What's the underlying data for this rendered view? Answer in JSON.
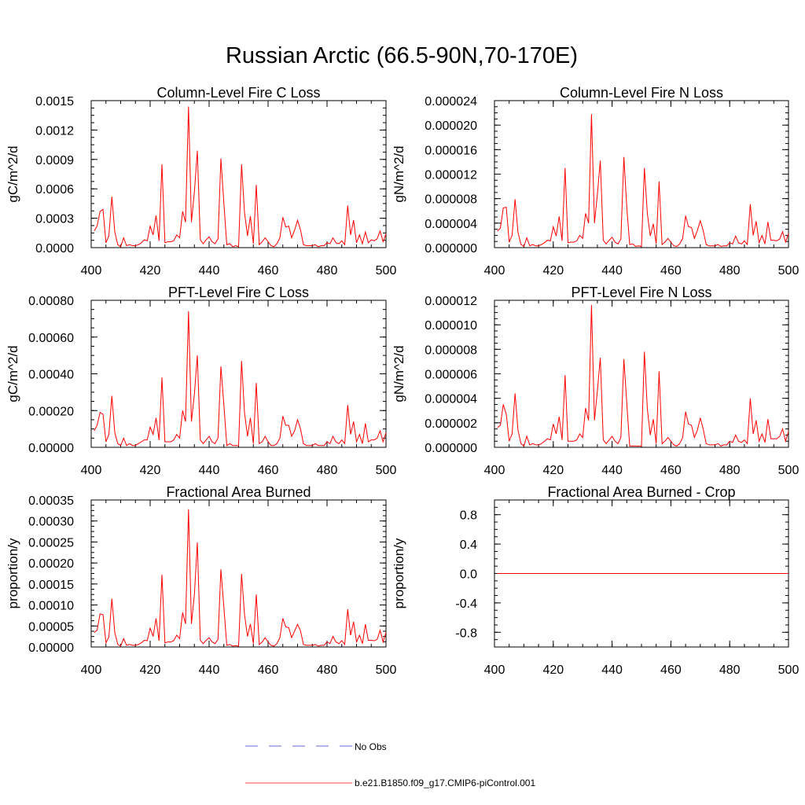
{
  "figure_title": "Russian Arctic (66.5-90N,70-170E)",
  "colors": {
    "series": "#ff0000",
    "obs": "#6a6ad8",
    "axis": "#000000"
  },
  "legend": [
    {
      "label": "No Obs",
      "style": "dashed",
      "color": "#6a6ad8"
    },
    {
      "label": "b.e21.B1850.f09_g17.CMIP6-piControl.001",
      "style": "solid",
      "color": "#ff0000"
    }
  ],
  "chart_data": [
    {
      "type": "line",
      "title": "Column-Level Fire C Loss",
      "ylabel": "gC/m^2/d",
      "xlabel": "",
      "xlim": [
        400,
        500
      ],
      "ylim": [
        0,
        0.0015
      ],
      "xticks": [
        400,
        420,
        440,
        460,
        480,
        500
      ],
      "xtick_labels": [
        "400",
        "420",
        "440",
        "460",
        "480",
        "500"
      ],
      "yticks": [
        0,
        0.0003,
        0.0006,
        0.0009,
        0.0012,
        0.0015
      ],
      "ytick_labels": [
        "0.0000",
        "0.0003",
        "0.0006",
        "0.0009",
        "0.0012",
        "0.0015"
      ],
      "series": [
        {
          "name": "b.e21.B1850.f09_g17.CMIP6-piControl.001",
          "x_start": 401,
          "values": [
            0.00017,
            0.00022,
            0.00037,
            0.00039,
            5e-05,
            0.00012,
            0.00052,
            0.00016,
            3e-05,
            1e-05,
            0.0001,
            2e-05,
            3e-05,
            2e-05,
            2e-05,
            3e-05,
            5e-05,
            8e-05,
            7e-05,
            0.00022,
            0.00013,
            0.00033,
            7e-05,
            0.00085,
            5e-05,
            6e-05,
            6e-05,
            7e-05,
            0.00013,
            0.0001,
            0.00037,
            0.00026,
            0.00144,
            0.00026,
            0.00057,
            0.00099,
            8e-05,
            4e-05,
            8e-05,
            0.00011,
            6e-05,
            4e-05,
            9e-05,
            0.00091,
            0.00045,
            3e-05,
            4e-05,
            1e-05,
            2e-05,
            1e-05,
            0.00085,
            0.00036,
            0.00012,
            0.00032,
            4e-05,
            0.00064,
            3e-05,
            6e-05,
            0.0001,
            6e-05,
            2e-05,
            1e-05,
            4e-05,
            0.0001,
            0.00031,
            0.00021,
            0.00022,
            0.0001,
            0.00018,
            0.00028,
            0.00018,
            3e-05,
            2e-05,
            2e-05,
            2e-05,
            3e-05,
            1e-05,
            2e-05,
            2e-05,
            5e-05,
            4e-05,
            0.0001,
            5e-05,
            4e-05,
            7e-05,
            3e-05,
            0.00043,
            0.00013,
            0.00028,
            5e-05,
            0.00013,
            4e-05,
            0.00016,
            5e-05,
            8e-05,
            7e-05,
            9e-05,
            0.00017,
            6e-05,
            0.00014
          ]
        }
      ]
    },
    {
      "type": "line",
      "title": "Column-Level Fire N Loss",
      "ylabel": "gN/m^2/d",
      "xlabel": "",
      "xlim": [
        400,
        500
      ],
      "ylim": [
        0,
        2.4e-05
      ],
      "xticks": [
        400,
        420,
        440,
        460,
        480,
        500
      ],
      "xtick_labels": [
        "400",
        "420",
        "440",
        "460",
        "480",
        "500"
      ],
      "yticks": [
        0,
        4e-06,
        8e-06,
        1.2e-05,
        1.6e-05,
        2e-05,
        2.4e-05
      ],
      "ytick_labels": [
        "0.000000",
        "0.000004",
        "0.000008",
        "0.000012",
        "0.000016",
        "0.000020",
        "0.000024"
      ],
      "series": [
        {
          "name": "b.e21.B1850.f09_g17.CMIP6-piControl.001",
          "x_start": 401,
          "values": [
            2.7e-06,
            3.2e-06,
            6.5e-06,
            6.6e-06,
            9e-07,
            2e-06,
            7.9e-06,
            2.5e-06,
            5e-07,
            2e-07,
            1.6e-06,
            3e-07,
            5e-07,
            3e-07,
            3e-07,
            5e-07,
            8e-07,
            1.2e-06,
            1.1e-06,
            3.4e-06,
            1.9e-06,
            5.1e-06,
            1.1e-06,
            1.3e-05,
            8e-07,
            9e-07,
            9e-07,
            1.1e-06,
            2e-06,
            1.5e-06,
            5.6e-06,
            4e-06,
            2.18e-05,
            4e-06,
            8.7e-06,
            1.42e-05,
            1.2e-06,
            6e-07,
            1.2e-06,
            1.7e-06,
            9e-07,
            6e-07,
            1.4e-06,
            1.48e-05,
            6.6e-06,
            5e-07,
            6e-07,
            2e-07,
            3e-07,
            2e-07,
            1.3e-05,
            5.5e-06,
            1.9e-06,
            3.9e-06,
            6e-07,
            1.08e-05,
            5e-07,
            9e-07,
            1.5e-06,
            9e-07,
            3e-07,
            2e-07,
            6e-07,
            1.5e-06,
            5.2e-06,
            3.4e-06,
            3.3e-06,
            1.5e-06,
            2.8e-06,
            4.4e-06,
            2.8e-06,
            5e-07,
            3e-07,
            3e-07,
            3e-07,
            5e-07,
            2e-07,
            3e-07,
            3e-07,
            8e-07,
            6e-07,
            1.9e-06,
            8e-07,
            6e-07,
            1.1e-06,
            5e-07,
            7.1e-06,
            2e-06,
            4.3e-06,
            8e-07,
            2e-06,
            6e-07,
            4.2e-06,
            1.2e-06,
            1.2e-06,
            1.1e-06,
            1.4e-06,
            2.6e-06,
            9e-07,
            2.3e-06
          ]
        }
      ]
    },
    {
      "type": "line",
      "title": "PFT-Level Fire C Loss",
      "ylabel": "gC/m^2/d",
      "xlabel": "",
      "xlim": [
        400,
        500
      ],
      "ylim": [
        0,
        0.0008
      ],
      "xticks": [
        400,
        420,
        440,
        460,
        480,
        500
      ],
      "xtick_labels": [
        "400",
        "420",
        "440",
        "460",
        "480",
        "500"
      ],
      "yticks": [
        0,
        0.0002,
        0.0004,
        0.0006,
        0.0008
      ],
      "ytick_labels": [
        "0.00000",
        "0.00020",
        "0.00040",
        "0.00060",
        "0.00080"
      ],
      "series": [
        {
          "name": "b.e21.B1850.f09_g17.CMIP6-piControl.001",
          "x_start": 401,
          "values": [
            9e-05,
            0.00012,
            0.00019,
            0.00018,
            3e-05,
            7e-05,
            0.00028,
            8e-05,
            2e-05,
            1e-05,
            5e-05,
            1e-05,
            2e-05,
            1e-05,
            1e-05,
            2e-05,
            3e-05,
            4e-05,
            4e-05,
            0.00011,
            7e-05,
            0.00016,
            4e-05,
            0.00038,
            3e-05,
            3e-05,
            3e-05,
            4e-05,
            7e-05,
            5e-05,
            0.0002,
            0.00014,
            0.00074,
            0.00014,
            0.00029,
            0.0005,
            4e-05,
            2e-05,
            4e-05,
            6e-05,
            3e-05,
            2e-05,
            5e-05,
            0.00044,
            0.00023,
            1e-05,
            2e-05,
            1e-05,
            1e-05,
            1e-05,
            0.00047,
            0.00019,
            6e-05,
            0.00016,
            2e-05,
            0.00035,
            2e-05,
            3e-05,
            6e-05,
            3e-05,
            1e-05,
            1e-05,
            2e-05,
            5e-05,
            0.00017,
            0.00012,
            0.00012,
            6e-05,
            9e-05,
            0.00015,
            0.0001,
            2e-05,
            1e-05,
            1e-05,
            1e-05,
            2e-05,
            1e-05,
            1e-05,
            1e-05,
            3e-05,
            2e-05,
            6e-05,
            3e-05,
            2e-05,
            4e-05,
            2e-05,
            0.00023,
            7e-05,
            0.00014,
            3e-05,
            7e-05,
            2e-05,
            0.00013,
            3e-05,
            4e-05,
            4e-05,
            5e-05,
            9e-05,
            3e-05,
            8e-05
          ]
        }
      ]
    },
    {
      "type": "line",
      "title": "PFT-Level Fire N Loss",
      "ylabel": "gN/m^2/d",
      "xlabel": "",
      "xlim": [
        400,
        500
      ],
      "ylim": [
        0,
        1.2e-05
      ],
      "xticks": [
        400,
        420,
        440,
        460,
        480,
        500
      ],
      "xtick_labels": [
        "400",
        "420",
        "440",
        "460",
        "480",
        "500"
      ],
      "yticks": [
        0,
        2e-06,
        4e-06,
        6e-06,
        8e-06,
        1e-05,
        1.2e-05
      ],
      "ytick_labels": [
        "0.000000",
        "0.000002",
        "0.000004",
        "0.000006",
        "0.000008",
        "0.000010",
        "0.000012"
      ],
      "series": [
        {
          "name": "b.e21.B1850.f09_g17.CMIP6-piControl.001",
          "x_start": 401,
          "values": [
            1.6e-06,
            1.8e-06,
            3.5e-06,
            2.7e-06,
            5e-07,
            1.1e-06,
            4.4e-06,
            1.4e-06,
            3e-07,
            1e-07,
            9e-07,
            2e-07,
            3e-07,
            2e-07,
            2e-07,
            3e-07,
            5e-07,
            7e-07,
            6e-07,
            1.9e-06,
            1.1e-06,
            2.5e-06,
            6e-07,
            5.9e-06,
            5e-07,
            5e-07,
            5e-07,
            6e-07,
            1.1e-06,
            8e-07,
            3.2e-06,
            2.2e-06,
            1.16e-05,
            2.2e-06,
            4.6e-06,
            7.3e-06,
            6e-07,
            3e-07,
            6e-07,
            9e-07,
            5e-07,
            3e-07,
            8e-07,
            7.2e-06,
            3.6e-06,
            1e-07,
            1e-07,
            1e-07,
            1e-07,
            1e-07,
            7.8e-06,
            3.1e-06,
            1e-06,
            2.3e-06,
            3e-07,
            6.2e-06,
            3e-07,
            5e-07,
            8e-07,
            5e-07,
            2e-07,
            1e-07,
            3e-07,
            8e-07,
            2.9e-06,
            1.9e-06,
            1.8e-06,
            8e-07,
            1.4e-06,
            2.4e-06,
            1.5e-06,
            3e-07,
            2e-07,
            2e-07,
            2e-07,
            3e-07,
            1e-07,
            2e-07,
            2e-07,
            5e-07,
            4e-07,
            1e-06,
            5e-07,
            4e-07,
            6e-07,
            3e-07,
            4e-06,
            1.1e-06,
            2.2e-06,
            5e-07,
            1.1e-06,
            4e-07,
            2.3e-06,
            7e-07,
            7e-07,
            7e-07,
            9e-07,
            1.5e-06,
            5e-07,
            1.3e-06
          ]
        }
      ]
    },
    {
      "type": "line",
      "title": "Fractional Area Burned",
      "ylabel": "proportion/y",
      "xlabel": "",
      "xlim": [
        400,
        500
      ],
      "ylim": [
        0,
        0.00035
      ],
      "xticks": [
        400,
        420,
        440,
        460,
        480,
        500
      ],
      "xtick_labels": [
        "400",
        "420",
        "440",
        "460",
        "480",
        "500"
      ],
      "yticks": [
        0,
        5e-05,
        0.0001,
        0.00015,
        0.0002,
        0.00025,
        0.0003,
        0.00035
      ],
      "ytick_labels": [
        "0.00000",
        "0.00005",
        "0.00010",
        "0.00015",
        "0.00020",
        "0.00025",
        "0.00030",
        "0.00035"
      ],
      "series": [
        {
          "name": "b.e21.B1850.f09_g17.CMIP6-piControl.001",
          "x_start": 401,
          "values": [
            3.4e-05,
            4e-05,
            7.9e-05,
            7.7e-05,
            1e-05,
            2.4e-05,
            0.000115,
            3.5e-05,
            6e-06,
            2e-06,
            2e-05,
            4e-06,
            6e-06,
            4e-06,
            4e-06,
            6e-06,
            1e-05,
            1.6e-05,
            1.5e-05,
            4.5e-05,
            2.5e-05,
            6.8e-05,
            1.5e-05,
            0.000172,
            1e-05,
            1.2e-05,
            1.2e-05,
            1.5e-05,
            2.8e-05,
            2e-05,
            8.2e-05,
            5.5e-05,
            0.000328,
            5.5e-05,
            0.000125,
            0.000249,
            1.6e-05,
            8e-06,
            1.6e-05,
            2.2e-05,
            1.2e-05,
            8e-06,
            1.8e-05,
            0.000185,
            9.4e-05,
            4e-06,
            6e-06,
            2e-06,
            3e-06,
            2e-06,
            0.000174,
            7.8e-05,
            2.5e-05,
            5.5e-05,
            8e-06,
            0.000125,
            6e-06,
            1.2e-05,
            2.2e-05,
            1.2e-05,
            4e-06,
            2e-06,
            8e-06,
            2.2e-05,
            6.8e-05,
            4.8e-05,
            4.6e-05,
            2.2e-05,
            3.8e-05,
            5.4e-05,
            3.8e-05,
            6e-06,
            4e-06,
            4e-06,
            4e-06,
            6e-06,
            2e-06,
            4e-06,
            4e-06,
            1.2e-05,
            8e-06,
            2.5e-05,
            1.2e-05,
            8e-06,
            1.5e-05,
            6e-06,
            9e-05,
            2.8e-05,
            6e-05,
            1.2e-05,
            2.8e-05,
            8e-06,
            5.4e-05,
            1.6e-05,
            1.6e-05,
            1.5e-05,
            1.8e-05,
            4e-05,
            1.2e-05,
            3.5e-05
          ]
        }
      ]
    },
    {
      "type": "line",
      "title": "Fractional Area Burned - Crop",
      "ylabel": "proportion/y",
      "xlabel": "",
      "xlim": [
        400,
        500
      ],
      "ylim": [
        -1,
        1
      ],
      "xticks": [
        400,
        420,
        440,
        460,
        480,
        500
      ],
      "xtick_labels": [
        "400",
        "420",
        "440",
        "460",
        "480",
        "500"
      ],
      "yticks": [
        -0.8,
        -0.4,
        0,
        0.4,
        0.8
      ],
      "ytick_labels": [
        "-0.8",
        "-0.4",
        "0.0",
        "0.4",
        "0.8"
      ],
      "series": [
        {
          "name": "b.e21.B1850.f09_g17.CMIP6-piControl.001",
          "x_start": 401,
          "constant": 0
        }
      ]
    }
  ]
}
